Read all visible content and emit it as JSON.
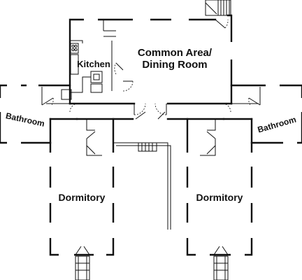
{
  "floor_plan": {
    "rooms": {
      "common_area_line1": "Common Area/",
      "common_area_line2": "Dining Room",
      "kitchen": "Kitchen",
      "bathroom_left": "Bathroom",
      "bathroom_right": "Bathroom",
      "dormitory_left": "Dormitory",
      "dormitory_right": "Dormitory"
    }
  }
}
